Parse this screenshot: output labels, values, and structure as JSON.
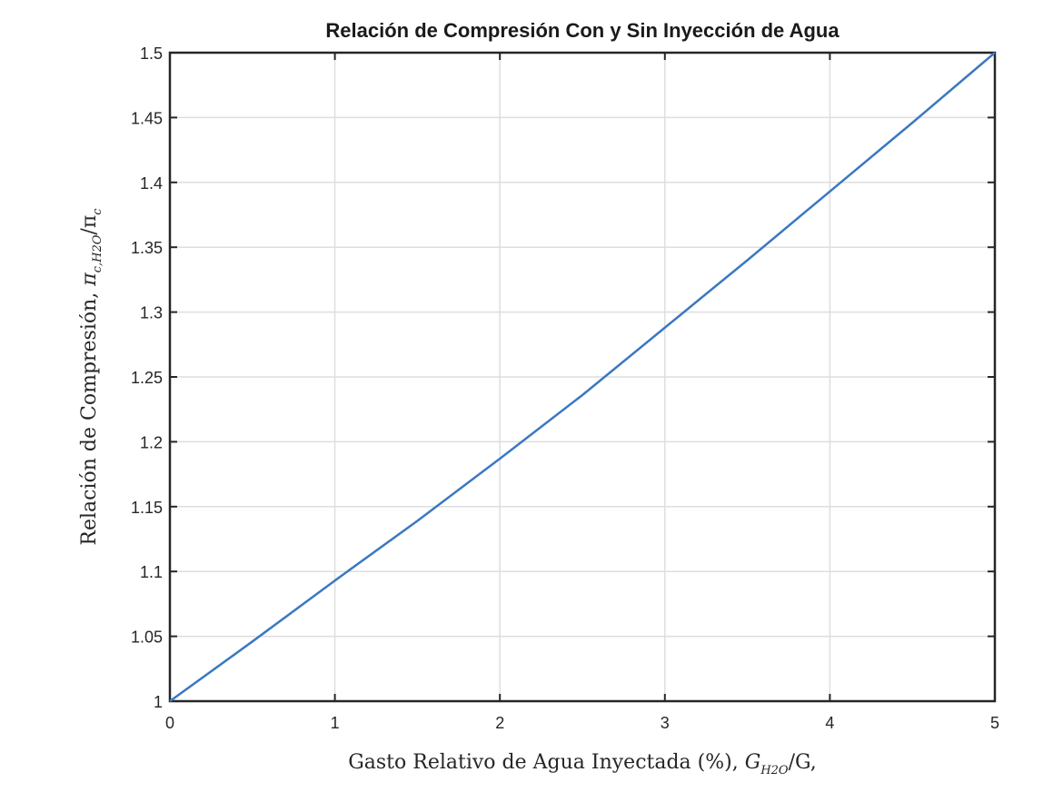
{
  "chart_data": {
    "type": "line",
    "title": "Relación de Compresión Con y Sin Inyección de Agua",
    "xlabel": {
      "prefix": "Gasto Relativo de Agua Inyectada (%), ",
      "symbol": "G",
      "subscript": "H2O",
      "suffix": "/G,"
    },
    "ylabel": {
      "prefix": "Relación de Compresión, ",
      "symbol": "π",
      "subscript": "c,H2O",
      "mid": "/π",
      "subscript2": "c"
    },
    "xlim": [
      0,
      5
    ],
    "ylim": [
      1,
      1.5
    ],
    "xticks": [
      0,
      1,
      2,
      3,
      4,
      5
    ],
    "xtick_labels": [
      "0",
      "1",
      "2",
      "3",
      "4",
      "5"
    ],
    "yticks": [
      1,
      1.05,
      1.1,
      1.15,
      1.2,
      1.25,
      1.3,
      1.35,
      1.4,
      1.45,
      1.5
    ],
    "ytick_labels": [
      "1",
      "1.05",
      "1.1",
      "1.15",
      "1.2",
      "1.25",
      "1.3",
      "1.35",
      "1.4",
      "1.45",
      "1.5"
    ],
    "grid": true,
    "series": [
      {
        "color": "#3a78c2",
        "x": [
          0,
          0.5,
          1,
          1.5,
          2,
          2.5,
          3,
          3.5,
          4,
          4.5,
          5
        ],
        "y": [
          1.0,
          1.046,
          1.093,
          1.139,
          1.187,
          1.236,
          1.288,
          1.34,
          1.393,
          1.446,
          1.5
        ]
      }
    ]
  }
}
